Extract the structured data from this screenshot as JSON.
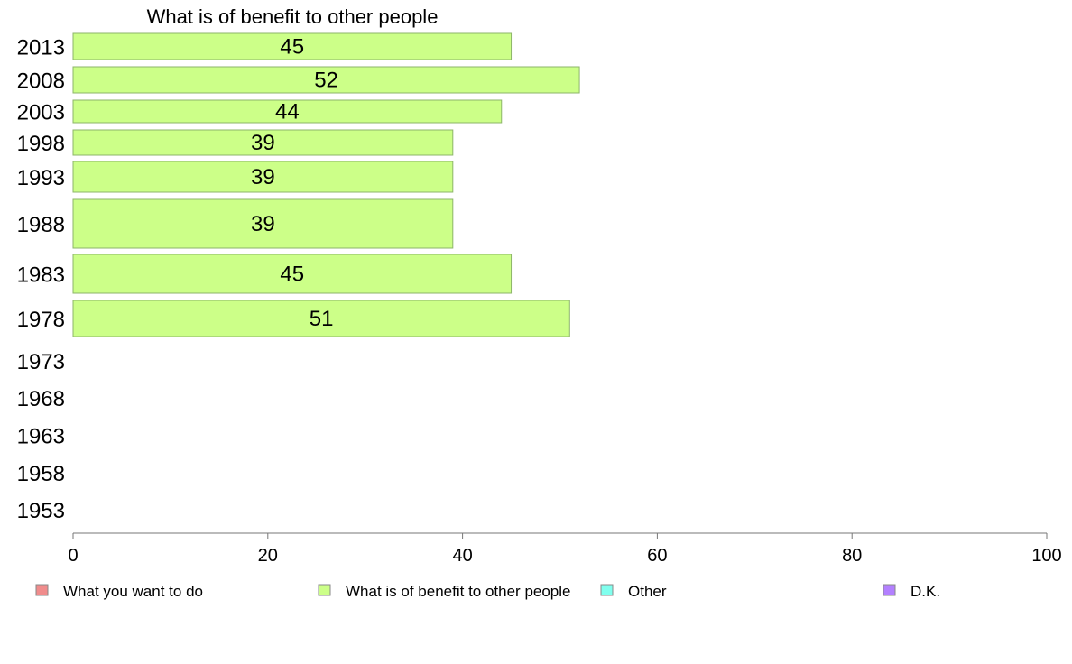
{
  "chart_data": {
    "type": "bar",
    "orientation": "horizontal",
    "title": "What is of benefit to other people",
    "xlabel": "",
    "ylabel": "",
    "xlim": [
      0,
      100
    ],
    "x_ticks": [
      "0",
      "20",
      "40",
      "60",
      "80",
      "100"
    ],
    "grid": false,
    "legend_position": "bottom",
    "categories": [
      "2013",
      "2008",
      "2003",
      "1998",
      "1993",
      "1988",
      "1983",
      "1978",
      "1973",
      "1968",
      "1963",
      "1958",
      "1953"
    ],
    "series": [
      {
        "name": "What is of benefit to other people",
        "color": "#ccff88",
        "values": [
          45,
          52,
          44,
          39,
          39,
          39,
          45,
          51,
          null,
          null,
          null,
          null,
          null
        ]
      }
    ],
    "legend": [
      {
        "label": "What you want to do",
        "color": "#f08c8c"
      },
      {
        "label": "What is of benefit to other people",
        "color": "#ccff88"
      },
      {
        "label": "Other",
        "color": "#80ffee"
      },
      {
        "label": "D.K.",
        "color": "#b380ff"
      }
    ]
  }
}
